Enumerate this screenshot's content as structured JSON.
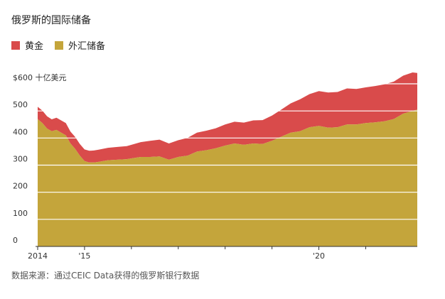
{
  "title": "俄罗斯的国际储备",
  "source": "数据来源：通过CEIC Data获得的俄罗斯银行数据",
  "colors": {
    "gold": "#d94b4b",
    "fx": "#c4a53b",
    "grid": "#ffffff",
    "axis": "#333333"
  },
  "chart_data": {
    "type": "area",
    "stacked": true,
    "ylabel_top": "$600 十亿美元",
    "ylim": [
      0,
      600
    ],
    "y_ticks": [
      0,
      100,
      200,
      300,
      400,
      500,
      600
    ],
    "y_tick_labels": [
      "0",
      "100",
      "200",
      "300",
      "400",
      "500",
      "$600 十亿美元"
    ],
    "xlim": [
      2014.0,
      2022.1
    ],
    "x_tick_labels": [
      {
        "x": 2014.0,
        "label": "2014"
      },
      {
        "x": 2015.0,
        "label": "'15"
      },
      {
        "x": 2020.0,
        "label": "'20"
      }
    ],
    "x_minor_ticks": [
      2016.0,
      2017.0,
      2018.0,
      2019.0,
      2021.0
    ],
    "legend": [
      {
        "name": "黄金",
        "color": "#d94b4b"
      },
      {
        "name": "外汇储备",
        "color": "#c4a53b"
      }
    ],
    "x": [
      2014.0,
      2014.1,
      2014.2,
      2014.3,
      2014.4,
      2014.5,
      2014.6,
      2014.7,
      2014.8,
      2014.9,
      2015.0,
      2015.1,
      2015.2,
      2015.3,
      2015.5,
      2015.7,
      2015.9,
      2016.0,
      2016.2,
      2016.4,
      2016.6,
      2016.8,
      2017.0,
      2017.2,
      2017.4,
      2017.6,
      2017.8,
      2018.0,
      2018.2,
      2018.4,
      2018.6,
      2018.8,
      2019.0,
      2019.2,
      2019.4,
      2019.6,
      2019.8,
      2020.0,
      2020.2,
      2020.4,
      2020.6,
      2020.8,
      2021.0,
      2021.2,
      2021.4,
      2021.6,
      2021.8,
      2022.0,
      2022.1
    ],
    "series": [
      {
        "name": "外汇储备",
        "values": [
          470,
          455,
          435,
          425,
          430,
          420,
          410,
          380,
          360,
          335,
          315,
          310,
          310,
          312,
          318,
          320,
          322,
          325,
          330,
          330,
          332,
          320,
          330,
          335,
          350,
          355,
          362,
          372,
          380,
          375,
          380,
          378,
          390,
          405,
          420,
          425,
          440,
          445,
          438,
          440,
          450,
          450,
          455,
          458,
          462,
          470,
          490,
          500,
          505
        ]
      },
      {
        "name": "黄金",
        "values": [
          45,
          46,
          45,
          44,
          45,
          45,
          45,
          44,
          44,
          43,
          43,
          43,
          44,
          45,
          46,
          47,
          48,
          50,
          55,
          60,
          62,
          60,
          62,
          66,
          70,
          72,
          74,
          78,
          80,
          82,
          85,
          88,
          93,
          100,
          108,
          118,
          122,
          128,
          130,
          130,
          133,
          131,
          132,
          134,
          136,
          138,
          140,
          142,
          135
        ]
      }
    ]
  }
}
